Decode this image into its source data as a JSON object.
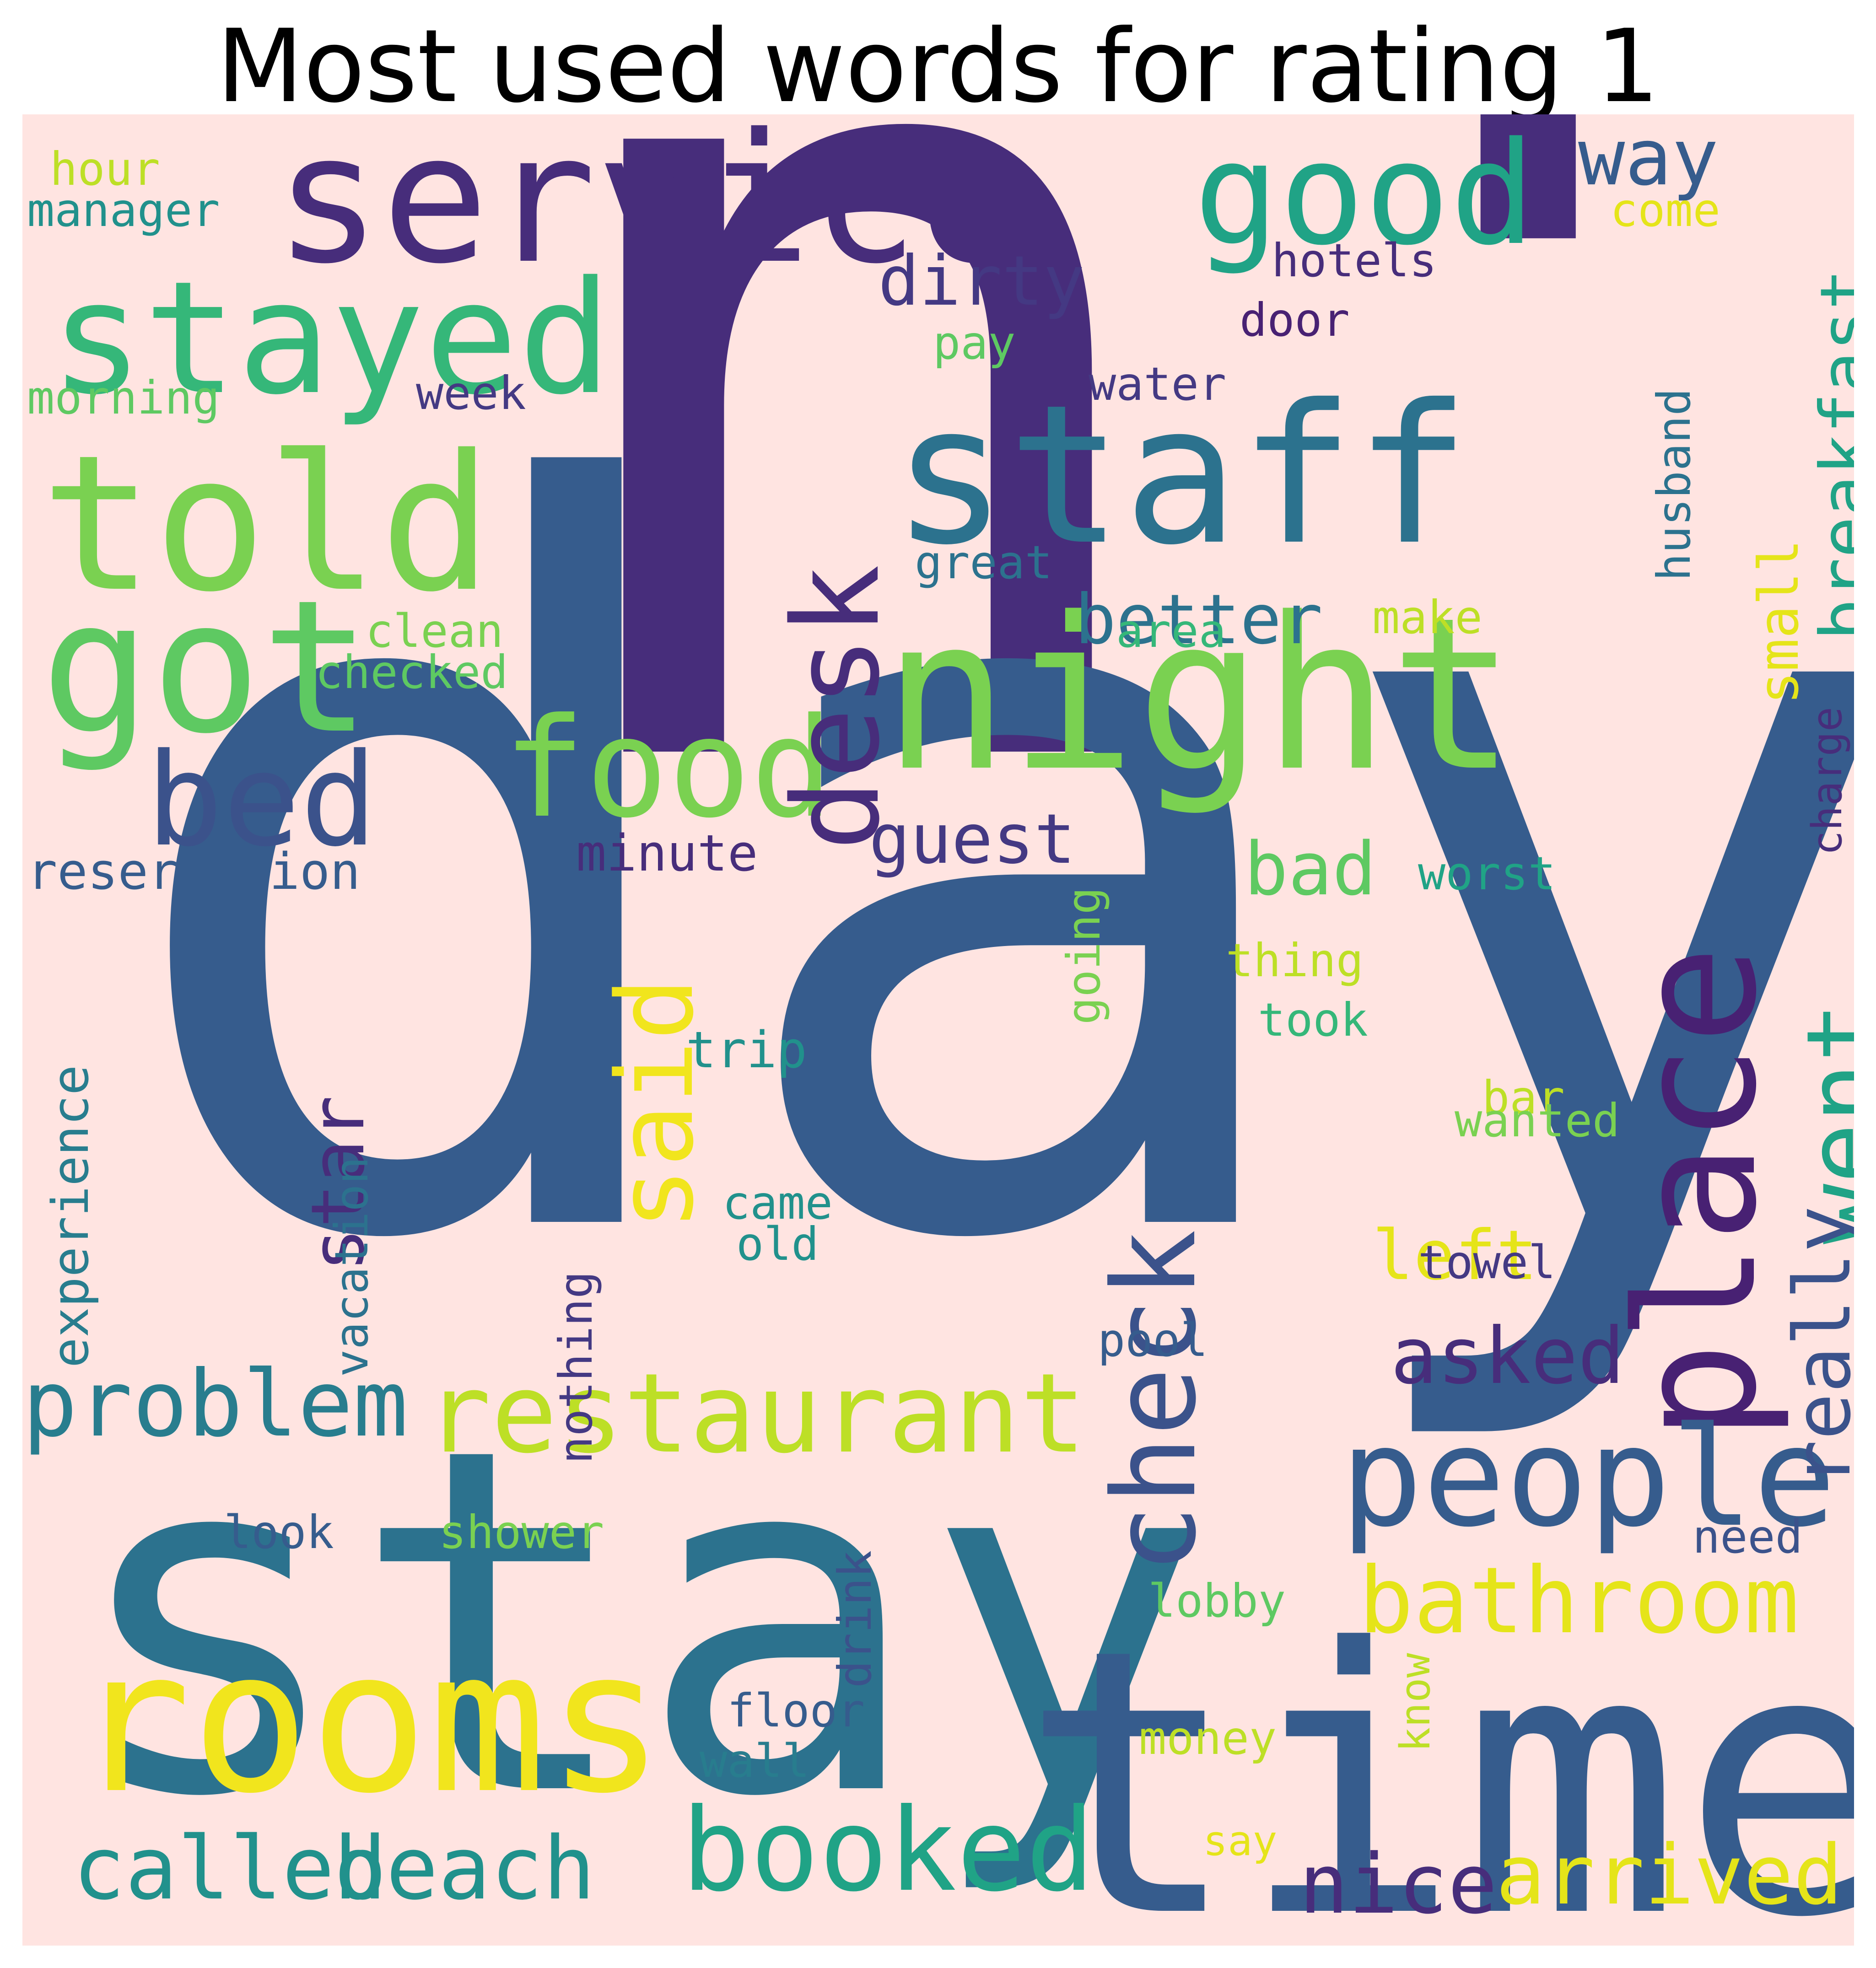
{
  "title": "Most used words for rating 1",
  "background_color": "#ffe4e1",
  "palette": {
    "dark_purple": "#472d7b",
    "purple": "#443983",
    "indigo": "#3b528b",
    "blue": "#365c8d",
    "steel_blue": "#2c728e",
    "teal": "#287d8e",
    "teal_green": "#21918c",
    "green_teal": "#20a386",
    "green": "#35b779",
    "light_green": "#5ec962",
    "lime": "#7ad151",
    "yellow_green": "#bddf26",
    "yellow": "#e5e419",
    "bright_yellow": "#f1e51d"
  },
  "words": [
    {
      "text": "n't",
      "color": "#472d7b",
      "rotated": false
    },
    {
      "text": "day",
      "color": "#365c8d",
      "rotated": false
    },
    {
      "text": "stay",
      "color": "#2c728e",
      "rotated": false
    },
    {
      "text": "time",
      "color": "#365c8d",
      "rotated": false
    },
    {
      "text": "service",
      "color": "#472d7b",
      "rotated": false
    },
    {
      "text": "staff",
      "color": "#2c728e",
      "rotated": false
    },
    {
      "text": "night",
      "color": "#7ad151",
      "rotated": false
    },
    {
      "text": "told",
      "color": "#7ad151",
      "rotated": false
    },
    {
      "text": "got",
      "color": "#5ec962",
      "rotated": false
    },
    {
      "text": "stayed",
      "color": "#35b779",
      "rotated": false
    },
    {
      "text": "good",
      "color": "#20a386",
      "rotated": false
    },
    {
      "text": "rooms",
      "color": "#f1e51d",
      "rotated": false
    },
    {
      "text": "place",
      "color": "#482173",
      "rotated": true
    },
    {
      "text": "food",
      "color": "#7ad151",
      "rotated": false
    },
    {
      "text": "desk",
      "color": "#472d7b",
      "rotated": true
    },
    {
      "text": "bed",
      "color": "#3b528b",
      "rotated": false
    },
    {
      "text": "check",
      "color": "#3b528b",
      "rotated": true
    },
    {
      "text": "said",
      "color": "#f1e51d",
      "rotated": true
    },
    {
      "text": "people",
      "color": "#365c8d",
      "rotated": false
    },
    {
      "text": "restaurant",
      "color": "#bddf26",
      "rotated": false
    },
    {
      "text": "booked",
      "color": "#20a386",
      "rotated": false
    },
    {
      "text": "went",
      "color": "#20a386",
      "rotated": true
    },
    {
      "text": "bathroom",
      "color": "#e5e419",
      "rotated": false
    },
    {
      "text": "problem",
      "color": "#287d8e",
      "rotated": false
    },
    {
      "text": "called",
      "color": "#21918c",
      "rotated": false
    },
    {
      "text": "beach",
      "color": "#21918c",
      "rotated": false
    },
    {
      "text": "arrived",
      "color": "#e5e419",
      "rotated": false
    },
    {
      "text": "nice",
      "color": "#472d7b",
      "rotated": false
    },
    {
      "text": "really",
      "color": "#3b528b",
      "rotated": true
    },
    {
      "text": "breakfast",
      "color": "#20a386",
      "rotated": true
    },
    {
      "text": "better",
      "color": "#2c728e",
      "rotated": false
    },
    {
      "text": "way",
      "color": "#365c8d",
      "rotated": false
    },
    {
      "text": "dirty",
      "color": "#443983",
      "rotated": false
    },
    {
      "text": "guest",
      "color": "#443983",
      "rotated": false
    },
    {
      "text": "asked",
      "color": "#472d7b",
      "rotated": false
    },
    {
      "text": "star",
      "color": "#472d7b",
      "rotated": true
    },
    {
      "text": "bad",
      "color": "#5ec962",
      "rotated": false
    },
    {
      "text": "left",
      "color": "#e5e419",
      "rotated": false
    },
    {
      "text": "small",
      "color": "#e5e419",
      "rotated": true
    },
    {
      "text": "reservation",
      "color": "#365c8d",
      "rotated": false
    },
    {
      "text": "experience",
      "color": "#287d8e",
      "rotated": true
    },
    {
      "text": "vacation",
      "color": "#2c728e",
      "rotated": true
    },
    {
      "text": "nothing",
      "color": "#443983",
      "rotated": true
    },
    {
      "text": "minute",
      "color": "#472d7b",
      "rotated": false
    },
    {
      "text": "trip",
      "color": "#21918c",
      "rotated": false
    },
    {
      "text": "came",
      "color": "#21918c",
      "rotated": false
    },
    {
      "text": "old",
      "color": "#21918c",
      "rotated": false
    },
    {
      "text": "hotels",
      "color": "#472d7b",
      "rotated": false
    },
    {
      "text": "door",
      "color": "#482173",
      "rotated": false
    },
    {
      "text": "water",
      "color": "#443983",
      "rotated": false
    },
    {
      "text": "week",
      "color": "#443983",
      "rotated": false
    },
    {
      "text": "pay",
      "color": "#5ec962",
      "rotated": false
    },
    {
      "text": "great",
      "color": "#2c728e",
      "rotated": false
    },
    {
      "text": "area",
      "color": "#35b779",
      "rotated": false
    },
    {
      "text": "make",
      "color": "#bddf26",
      "rotated": false
    },
    {
      "text": "clean",
      "color": "#7ad151",
      "rotated": false
    },
    {
      "text": "checked",
      "color": "#5ec962",
      "rotated": false
    },
    {
      "text": "hour",
      "color": "#bddf26",
      "rotated": false
    },
    {
      "text": "manager",
      "color": "#21918c",
      "rotated": false
    },
    {
      "text": "morning",
      "color": "#5ec962",
      "rotated": false
    },
    {
      "text": "come",
      "color": "#e5e419",
      "rotated": false
    },
    {
      "text": "husband",
      "color": "#2c728e",
      "rotated": true
    },
    {
      "text": "charge",
      "color": "#472d7b",
      "rotated": true
    },
    {
      "text": "worst",
      "color": "#20a386",
      "rotated": false
    },
    {
      "text": "going",
      "color": "#7ad151",
      "rotated": true
    },
    {
      "text": "thing",
      "color": "#bddf26",
      "rotated": false
    },
    {
      "text": "took",
      "color": "#35b779",
      "rotated": false
    },
    {
      "text": "bar",
      "color": "#bddf26",
      "rotated": false
    },
    {
      "text": "wanted",
      "color": "#7ad151",
      "rotated": false
    },
    {
      "text": "towel",
      "color": "#443983",
      "rotated": false
    },
    {
      "text": "pool",
      "color": "#365c8d",
      "rotated": false
    },
    {
      "text": "look",
      "color": "#365c8d",
      "rotated": false
    },
    {
      "text": "shower",
      "color": "#7ad151",
      "rotated": false
    },
    {
      "text": "drink",
      "color": "#3b528b",
      "rotated": true
    },
    {
      "text": "lobby",
      "color": "#5ec962",
      "rotated": false
    },
    {
      "text": "need",
      "color": "#3b528b",
      "rotated": false
    },
    {
      "text": "floor",
      "color": "#365c8d",
      "rotated": false
    },
    {
      "text": "wall",
      "color": "#287d8e",
      "rotated": false
    },
    {
      "text": "money",
      "color": "#bddf26",
      "rotated": false
    },
    {
      "text": "know",
      "color": "#bddf26",
      "rotated": true
    },
    {
      "text": "say",
      "color": "#e5e419",
      "rotated": false
    }
  ]
}
